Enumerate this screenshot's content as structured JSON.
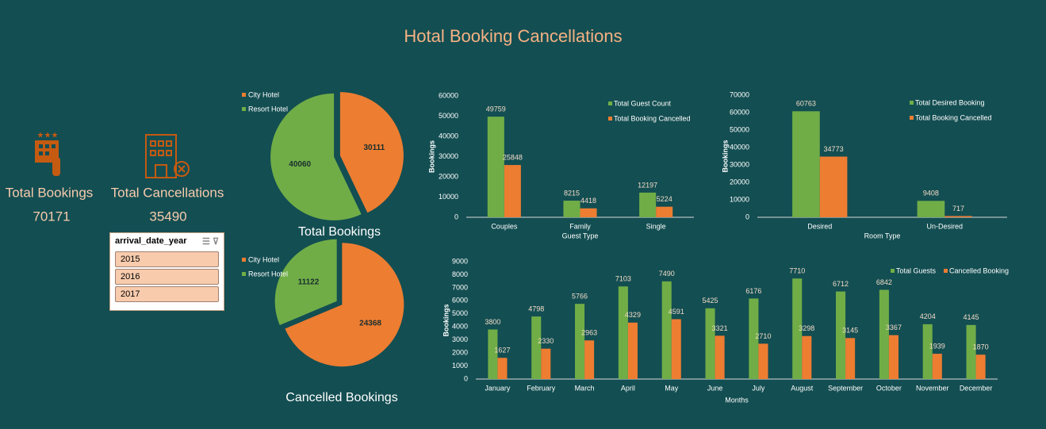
{
  "title": "Hotal Booking Cancellations",
  "kpis": [
    {
      "label": "Total Bookings",
      "value": 70171
    },
    {
      "label": "Total Cancellations",
      "value": 35490
    }
  ],
  "slicer": {
    "title": "arrival_date_year",
    "items": [
      "2015",
      "2016",
      "2017"
    ]
  },
  "chart_data": [
    {
      "type": "pie",
      "title": "Total Bookings",
      "categories": [
        "City Hotel",
        "Resort Hotel"
      ],
      "values": [
        30111,
        40060
      ],
      "colors": [
        "#ed7d31",
        "#70ad47"
      ],
      "legend": "top-left"
    },
    {
      "type": "pie",
      "title": "Cancelled Bookings",
      "categories": [
        "City Hotel",
        "Resort Hotel"
      ],
      "values": [
        24368,
        11122
      ],
      "colors": [
        "#ed7d31",
        "#70ad47"
      ],
      "legend": "top-left"
    },
    {
      "type": "bar",
      "xlabel": "Guest Type",
      "ylabel": "Bookings",
      "categories": [
        "Couples",
        "Family",
        "Single"
      ],
      "series": [
        {
          "name": "Total Guest Count",
          "color": "#70ad47",
          "values": [
            49759,
            8215,
            12197
          ]
        },
        {
          "name": "Total Booking Cancelled",
          "color": "#ed7d31",
          "values": [
            25848,
            4418,
            5224
          ]
        }
      ],
      "ylim": [
        0,
        60000
      ],
      "yticks": [
        0,
        10000,
        20000,
        30000,
        40000,
        50000,
        60000
      ],
      "grid": false,
      "legend": "top-right"
    },
    {
      "type": "bar",
      "xlabel": "Room Type",
      "ylabel": "Bookings",
      "categories": [
        "Desired",
        "Un-Desired"
      ],
      "series": [
        {
          "name": "Total Desired Booking",
          "color": "#70ad47",
          "values": [
            60763,
            9408
          ]
        },
        {
          "name": "Total Booking Cancelled",
          "color": "#ed7d31",
          "values": [
            34773,
            717
          ]
        }
      ],
      "ylim": [
        0,
        70000
      ],
      "yticks": [
        0,
        10000,
        20000,
        30000,
        40000,
        50000,
        60000,
        70000
      ],
      "grid": false,
      "legend": "top-right"
    },
    {
      "type": "bar",
      "xlabel": "Months",
      "ylabel": "Bookings",
      "categories": [
        "January",
        "February",
        "March",
        "April",
        "May",
        "June",
        "July",
        "August",
        "September",
        "October",
        "November",
        "December"
      ],
      "series": [
        {
          "name": "Total Guests",
          "color": "#70ad47",
          "values": [
            3800,
            4798,
            5766,
            7103,
            7490,
            5425,
            6176,
            7710,
            6712,
            6842,
            4204,
            4145
          ]
        },
        {
          "name": "Cancelled Booking",
          "color": "#ed7d31",
          "values": [
            1627,
            2330,
            2963,
            4329,
            4591,
            3321,
            2710,
            3298,
            3145,
            3367,
            1939,
            1870
          ]
        }
      ],
      "ylim": [
        0,
        9000
      ],
      "yticks": [
        0,
        1000,
        2000,
        3000,
        4000,
        5000,
        6000,
        7000,
        8000,
        9000
      ],
      "grid": false,
      "legend": "top-right"
    }
  ]
}
